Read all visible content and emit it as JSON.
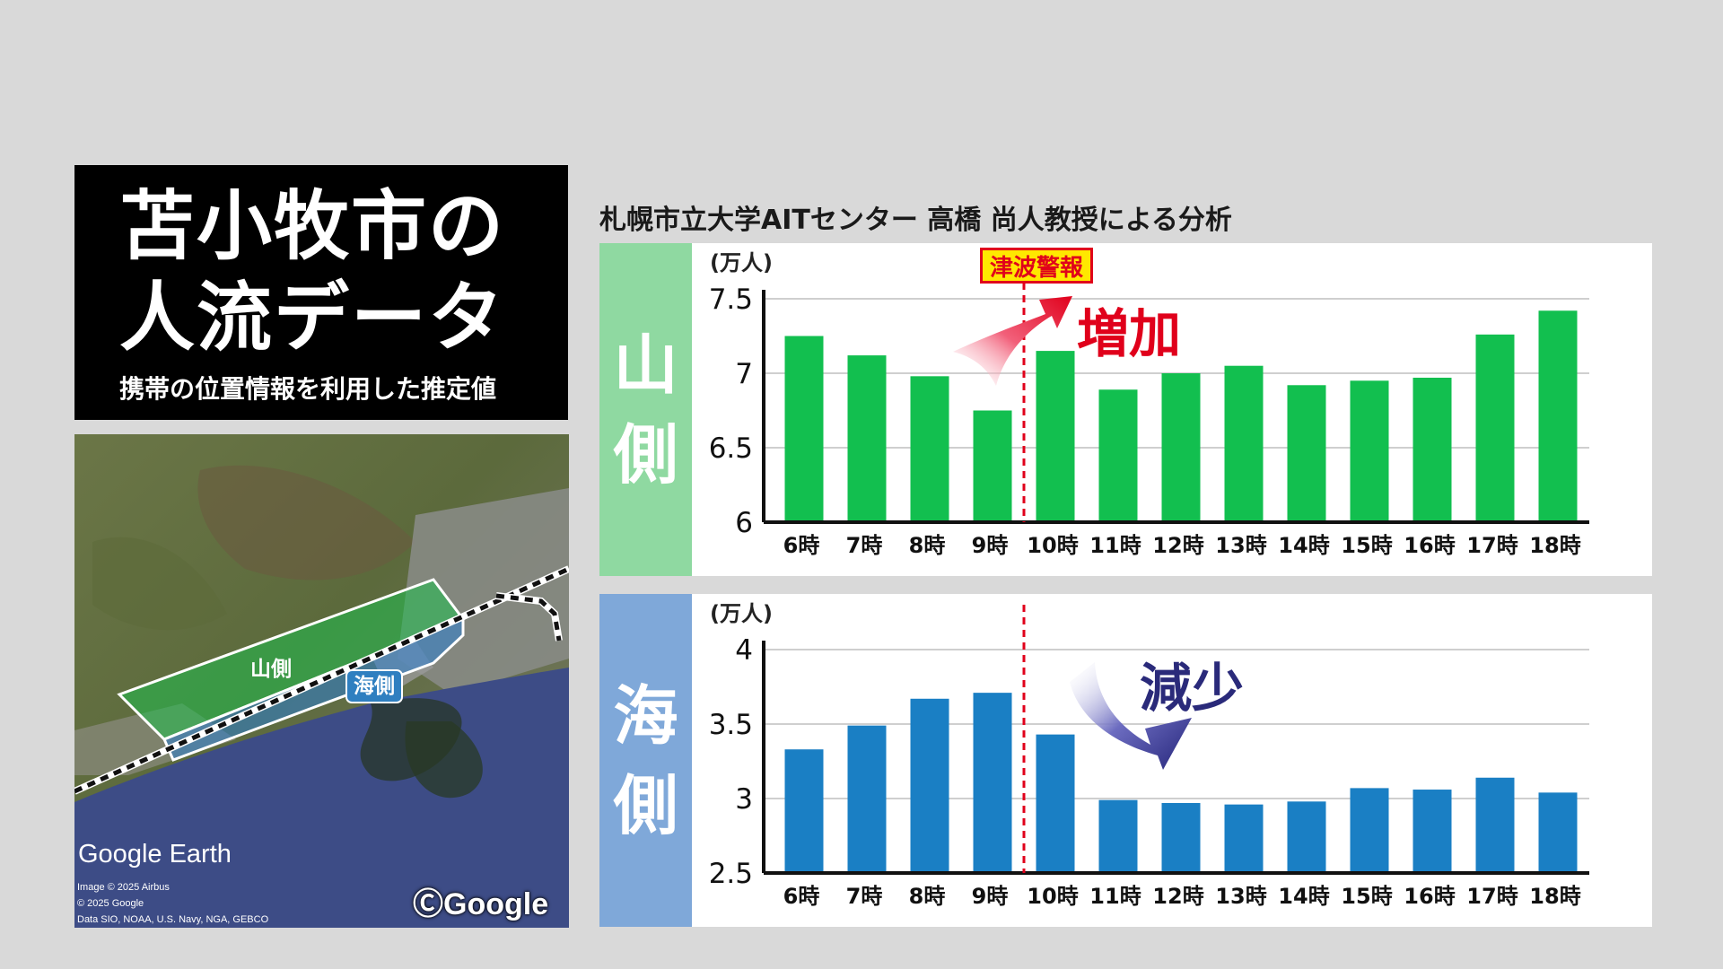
{
  "title": {
    "line1": "苫小牧市の",
    "line2": "人流データ",
    "subtitle": "携帯の位置情報を利用した推定値"
  },
  "map": {
    "label_yama": "山側",
    "label_umi": "海側",
    "logo": "Google Earth",
    "attribution": [
      "Image © 2025 Airbus",
      "© 2025 Google",
      "Data SIO, NOAA, U.S. Navy, NGA, GEBCO"
    ],
    "copyright": "ⒸGoogle"
  },
  "source": "札幌市立大学AITセンター 高橋 尚人教授による分析",
  "annotations": {
    "tsunami_warning": "津波警報",
    "increase": "増加",
    "decrease": "減少"
  },
  "colors": {
    "yama_bar": "#12bf4f",
    "umi_bar": "#1a7fc4",
    "yama_side": "#8fd9a1",
    "umi_side": "#7fa8d9",
    "warning_line": "#e0001b"
  },
  "chart_data": [
    {
      "type": "bar",
      "side_label": [
        "山",
        "側"
      ],
      "unit_label": "(万人)",
      "categories": [
        "6時",
        "7時",
        "8時",
        "9時",
        "10時",
        "11時",
        "12時",
        "13時",
        "14時",
        "15時",
        "16時",
        "17時",
        "18時"
      ],
      "values": [
        7.25,
        7.12,
        6.98,
        6.75,
        7.15,
        6.89,
        7.0,
        7.05,
        6.92,
        6.95,
        6.97,
        7.26,
        7.42
      ],
      "ylim": [
        6,
        7.5
      ],
      "yticks": [
        6,
        6.5,
        7,
        7.5
      ],
      "ytick_labels": [
        "6",
        "6.5",
        "7",
        "7.5"
      ],
      "grid": true,
      "event_marker_between": [
        "9時",
        "10時"
      ]
    },
    {
      "type": "bar",
      "side_label": [
        "海",
        "側"
      ],
      "unit_label": "(万人)",
      "categories": [
        "6時",
        "7時",
        "8時",
        "9時",
        "10時",
        "11時",
        "12時",
        "13時",
        "14時",
        "15時",
        "16時",
        "17時",
        "18時"
      ],
      "values": [
        3.33,
        3.49,
        3.67,
        3.71,
        3.43,
        2.99,
        2.97,
        2.96,
        2.98,
        3.07,
        3.06,
        3.14,
        3.04
      ],
      "ylim": [
        2.5,
        4
      ],
      "yticks": [
        2.5,
        3,
        3.5,
        4
      ],
      "ytick_labels": [
        "2.5",
        "3",
        "3.5",
        "4"
      ],
      "grid": true,
      "event_marker_between": [
        "9時",
        "10時"
      ]
    }
  ]
}
